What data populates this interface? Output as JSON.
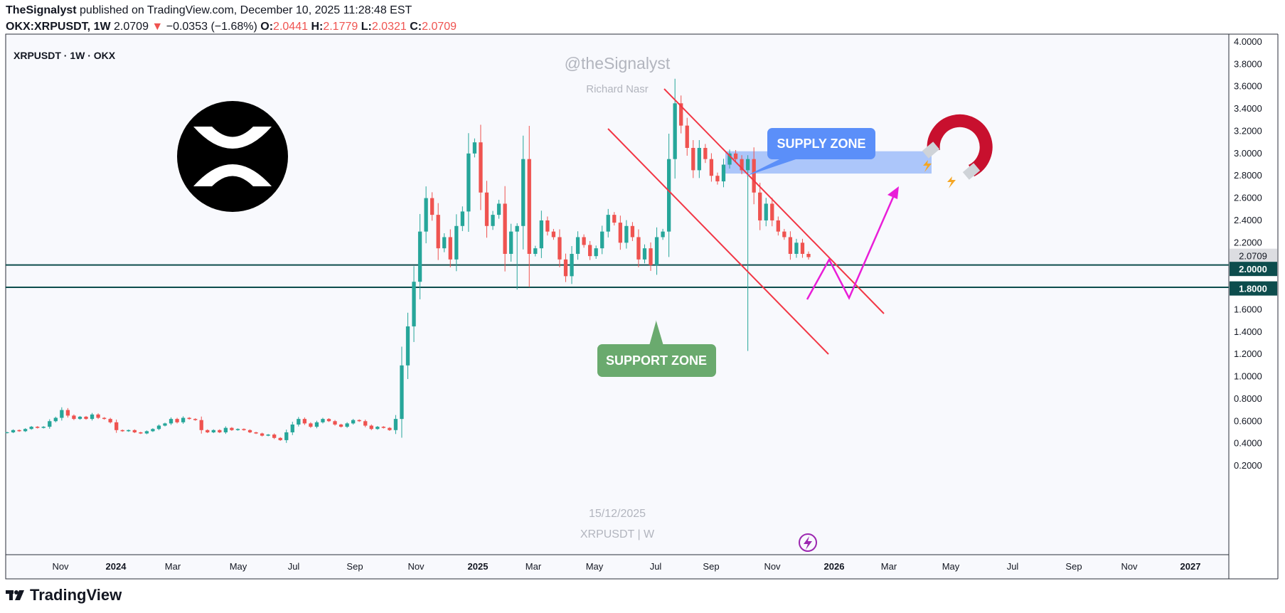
{
  "header": {
    "publisher": "TheSignalyst",
    "published_text": "published on TradingView.com, December 10, 2025 11:28:48 EST",
    "symbol": "OKX:XRPUSDT, 1W",
    "last": "2.0709",
    "change": "−0.0353 (−1.68%)",
    "o_label": "O:",
    "o": "2.0441",
    "h_label": "H:",
    "h": "2.1779",
    "l_label": "L:",
    "l": "2.0321",
    "c_label": "C:",
    "c": "2.0709"
  },
  "legend_title": "XRPUSDT · 1W · OKX",
  "watermark": {
    "handle": "@theSignalyst",
    "author": "Richard Nasr",
    "date": "15/12/2025",
    "symbol": "XRPUSDT | W"
  },
  "annotations": {
    "supply_zone": "SUPPLY ZONE",
    "support_zone": "SUPPORT ZONE"
  },
  "footer": {
    "brand": "TradingView"
  },
  "colors": {
    "up": "#26a69a",
    "down": "#ef5350",
    "supply_label": "#5b8ff9",
    "support_label": "#6aaa6e",
    "projection": "#e91ed8",
    "channel": "#f23645",
    "support_line": "#0d4d4d"
  },
  "price_badges": {
    "last": "2.0709",
    "level_2": "2.0000",
    "level_18": "1.8000"
  },
  "chart_data": {
    "type": "candlestick",
    "title": "XRPUSDT · 1W · OKX",
    "y_axis": {
      "range": [
        0.0,
        4.1
      ],
      "scale": "linear",
      "ticks": [
        "0.2000",
        "0.4000",
        "0.6000",
        "0.8000",
        "1.0000",
        "1.2000",
        "1.4000",
        "1.6000",
        "1.8000",
        "2.0000",
        "2.2000",
        "2.4000",
        "2.6000",
        "2.8000",
        "3.0000",
        "3.2000",
        "3.4000",
        "3.6000",
        "3.8000",
        "4.0000"
      ]
    },
    "x_axis": {
      "ticks": [
        "Nov",
        "2024",
        "Mar",
        "May",
        "Jul",
        "Sep",
        "Nov",
        "2025",
        "Mar",
        "May",
        "Jul",
        "Sep",
        "Nov",
        "2026",
        "Mar",
        "May",
        "Jul",
        "Sep",
        "Nov",
        "2027"
      ]
    },
    "closes": [
      0.5,
      0.52,
      0.51,
      0.53,
      0.55,
      0.54,
      0.55,
      0.6,
      0.63,
      0.7,
      0.65,
      0.62,
      0.64,
      0.62,
      0.66,
      0.63,
      0.62,
      0.59,
      0.52,
      0.51,
      0.52,
      0.5,
      0.49,
      0.51,
      0.53,
      0.56,
      0.58,
      0.62,
      0.59,
      0.63,
      0.62,
      0.61,
      0.52,
      0.5,
      0.52,
      0.5,
      0.54,
      0.52,
      0.53,
      0.52,
      0.5,
      0.49,
      0.47,
      0.48,
      0.45,
      0.43,
      0.5,
      0.57,
      0.62,
      0.58,
      0.55,
      0.59,
      0.62,
      0.6,
      0.57,
      0.55,
      0.58,
      0.61,
      0.6,
      0.56,
      0.53,
      0.55,
      0.54,
      0.52,
      0.62,
      1.1,
      1.45,
      1.85,
      2.3,
      2.6,
      2.45,
      2.15,
      2.25,
      2.05,
      2.35,
      2.48,
      3.0,
      3.1,
      2.65,
      2.35,
      2.45,
      2.55,
      2.1,
      2.3,
      2.35,
      2.95,
      2.1,
      2.15,
      2.4,
      2.3,
      2.25,
      2.05,
      1.9,
      2.1,
      2.25,
      2.18,
      2.08,
      2.15,
      2.3,
      2.45,
      2.38,
      2.2,
      2.35,
      2.25,
      2.05,
      2.15,
      2.0,
      2.25,
      2.3,
      2.95,
      3.45,
      3.25,
      3.05,
      2.85,
      3.05,
      2.95,
      2.8,
      2.75,
      2.9,
      3.0,
      2.95,
      2.85,
      2.95,
      2.65,
      2.4,
      2.55,
      2.4,
      2.3,
      2.25,
      2.1,
      2.2,
      2.1,
      2.0709
    ],
    "levels": [
      2.0,
      1.8
    ],
    "supply_zone": [
      2.82,
      3.02
    ],
    "channel_upper": [
      [
        3.67,
        "2025-07-14"
      ],
      [
        2.05,
        "2026-02"
      ]
    ],
    "projection_path": [
      2.07,
      2.33,
      2.06,
      2.9
    ]
  }
}
